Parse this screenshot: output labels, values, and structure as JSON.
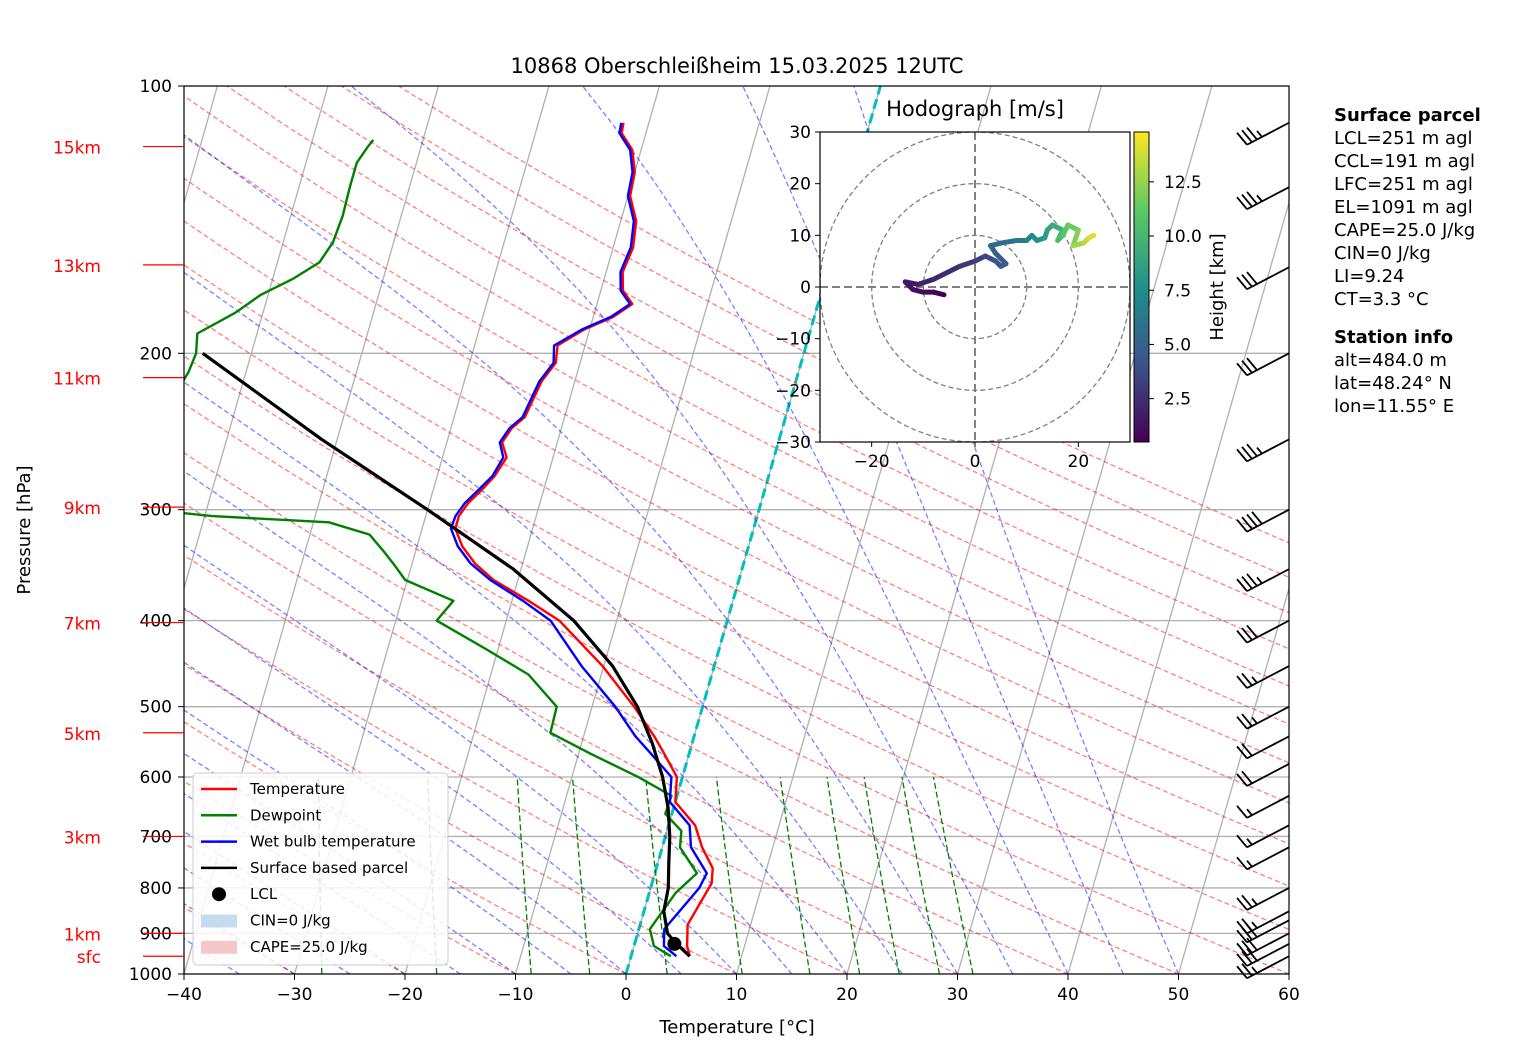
{
  "chart_data": {
    "type": "line",
    "title": "10868 Oberschleißheim 15.03.2025 12UTC",
    "xlabel": "Temperature [°C]",
    "ylabel": "Pressure [hPa]",
    "xlim": [
      -40,
      60
    ],
    "ylim": [
      1000,
      100
    ],
    "y_scale": "log",
    "skew": "skew-T log-p diagram",
    "grid": true,
    "x_ticks": [
      "−40",
      "−30",
      "−20",
      "−10",
      "0",
      "10",
      "20",
      "30",
      "40",
      "50",
      "60"
    ],
    "y_ticks": [
      "100",
      "200",
      "300",
      "400",
      "500",
      "600",
      "700",
      "800",
      "900",
      "1000"
    ],
    "height_labels": [
      {
        "label": "sfc",
        "pressure": 955
      },
      {
        "label": "1km",
        "pressure": 900
      },
      {
        "label": "3km",
        "pressure": 700
      },
      {
        "label": "5km",
        "pressure": 535
      },
      {
        "label": "7km",
        "pressure": 402
      },
      {
        "label": "9km",
        "pressure": 298
      },
      {
        "label": "11km",
        "pressure": 213
      },
      {
        "label": "13km",
        "pressure": 159
      },
      {
        "label": "15km",
        "pressure": 117
      }
    ],
    "legend": {
      "placement": "lower-left",
      "entries": [
        {
          "label": "Temperature",
          "color": "#ff0000",
          "kind": "line"
        },
        {
          "label": "Dewpoint",
          "color": "#008000",
          "kind": "line"
        },
        {
          "label": "Wet bulb temperature",
          "color": "#0000ff",
          "kind": "line"
        },
        {
          "label": "Surface based parcel",
          "color": "#000000",
          "kind": "line"
        },
        {
          "label": "LCL",
          "color": "#000000",
          "kind": "dot"
        },
        {
          "label": "CIN=0 J/kg",
          "color": "#c6dbef",
          "kind": "patch"
        },
        {
          "label": "CAPE=25.0 J/kg",
          "color": "#f4c7c9",
          "kind": "patch"
        }
      ]
    },
    "series": [
      {
        "name": "Temperature",
        "color": "#ff0000",
        "points": [
          [
            5.3,
            955
          ],
          [
            4.8,
            930
          ],
          [
            4.3,
            880
          ],
          [
            5.4,
            790
          ],
          [
            5.1,
            760
          ],
          [
            3.6,
            720
          ],
          [
            2.4,
            680
          ],
          [
            0.0,
            640
          ],
          [
            -0.5,
            600
          ],
          [
            -2.5,
            560
          ],
          [
            -3.6,
            540
          ],
          [
            -6.2,
            500
          ],
          [
            -10.1,
            450
          ],
          [
            -15.2,
            400
          ],
          [
            -18.5,
            380
          ],
          [
            -22.2,
            360
          ],
          [
            -24.3,
            345
          ],
          [
            -25.9,
            330
          ],
          [
            -27.0,
            315
          ],
          [
            -27.0,
            305
          ],
          [
            -26.5,
            295
          ],
          [
            -25.6,
            285
          ],
          [
            -24.8,
            275
          ],
          [
            -24.2,
            262
          ],
          [
            -25.0,
            252
          ],
          [
            -24.5,
            243
          ],
          [
            -23.6,
            236
          ],
          [
            -23.3,
            225
          ],
          [
            -23.0,
            215
          ],
          [
            -22.2,
            205
          ],
          [
            -22.5,
            196
          ],
          [
            -20.5,
            188
          ],
          [
            -18.2,
            182
          ],
          [
            -16.8,
            176
          ],
          [
            -18.0,
            170
          ],
          [
            -18.5,
            162
          ],
          [
            -18.2,
            152
          ],
          [
            -18.6,
            142
          ],
          [
            -19.8,
            133
          ],
          [
            -20.0,
            125
          ],
          [
            -20.8,
            118
          ],
          [
            -22.2,
            113
          ],
          [
            -22.3,
            110
          ]
        ]
      },
      {
        "name": "Dewpoint",
        "color": "#008000",
        "points": [
          [
            3.6,
            955
          ],
          [
            1.8,
            930
          ],
          [
            1.0,
            890
          ],
          [
            2.4,
            810
          ],
          [
            3.8,
            770
          ],
          [
            1.6,
            720
          ],
          [
            1.3,
            690
          ],
          [
            -0.6,
            660
          ],
          [
            -0.5,
            630
          ],
          [
            -4.0,
            600
          ],
          [
            -8.9,
            565
          ],
          [
            -13.1,
            535
          ],
          [
            -13.2,
            500
          ],
          [
            -16.6,
            460
          ],
          [
            -21.2,
            430
          ],
          [
            -26.3,
            400
          ],
          [
            -25.3,
            380
          ],
          [
            -30.2,
            360
          ],
          [
            -31.7,
            345
          ],
          [
            -32.8,
            335
          ],
          [
            -34.6,
            320
          ],
          [
            -38.6,
            310
          ],
          [
            -49.3,
            305
          ],
          [
            -57.6,
            298
          ],
          [
            -59.9,
            290
          ],
          [
            -60.6,
            280
          ],
          [
            -60.0,
            270
          ],
          [
            -59.6,
            260
          ],
          [
            -58.4,
            250
          ],
          [
            -56.9,
            240
          ],
          [
            -55.2,
            230
          ],
          [
            -55.7,
            220
          ],
          [
            -55.2,
            210
          ],
          [
            -55.0,
            200
          ],
          [
            -55.4,
            190
          ],
          [
            -52.5,
            180
          ],
          [
            -50.7,
            172
          ],
          [
            -48.2,
            165
          ],
          [
            -46.2,
            158
          ],
          [
            -45.5,
            150
          ],
          [
            -45.3,
            140
          ],
          [
            -45.4,
            130
          ],
          [
            -45.4,
            122
          ],
          [
            -44.8,
            117
          ],
          [
            -44.5,
            115
          ]
        ]
      },
      {
        "name": "Wet bulb temperature",
        "color": "#0000ff",
        "points": [
          [
            4.1,
            955
          ],
          [
            2.7,
            930
          ],
          [
            2.3,
            890
          ],
          [
            4.4,
            800
          ],
          [
            4.7,
            770
          ],
          [
            2.6,
            720
          ],
          [
            1.9,
            680
          ],
          [
            -0.5,
            640
          ],
          [
            -1.0,
            600
          ],
          [
            -3.8,
            560
          ],
          [
            -5.3,
            540
          ],
          [
            -7.9,
            500
          ],
          [
            -12.0,
            450
          ],
          [
            -16.0,
            400
          ],
          [
            -19.0,
            380
          ],
          [
            -22.5,
            360
          ],
          [
            -24.7,
            345
          ],
          [
            -26.3,
            330
          ],
          [
            -27.4,
            315
          ],
          [
            -27.3,
            305
          ],
          [
            -26.8,
            295
          ],
          [
            -25.9,
            285
          ],
          [
            -25.0,
            275
          ],
          [
            -24.5,
            262
          ],
          [
            -25.2,
            252
          ],
          [
            -24.7,
            243
          ],
          [
            -23.8,
            236
          ],
          [
            -23.5,
            225
          ],
          [
            -23.2,
            215
          ],
          [
            -22.4,
            205
          ],
          [
            -22.8,
            196
          ],
          [
            -20.7,
            188
          ],
          [
            -18.4,
            182
          ],
          [
            -17.0,
            176
          ],
          [
            -18.2,
            170
          ],
          [
            -18.7,
            162
          ],
          [
            -18.4,
            152
          ],
          [
            -18.8,
            142
          ],
          [
            -20.0,
            133
          ],
          [
            -20.2,
            125
          ],
          [
            -21.0,
            118
          ],
          [
            -22.4,
            113
          ],
          [
            -22.5,
            110
          ]
        ]
      },
      {
        "name": "Surface based parcel",
        "color": "#000000",
        "points": [
          [
            5.3,
            955
          ],
          [
            3.8,
            925
          ],
          [
            2.7,
            900
          ],
          [
            1.8,
            850
          ],
          [
            1.6,
            800
          ],
          [
            1.0,
            750
          ],
          [
            0.4,
            700
          ],
          [
            -0.5,
            650
          ],
          [
            -1.8,
            600
          ],
          [
            -3.6,
            550
          ],
          [
            -5.9,
            500
          ],
          [
            -9.2,
            450
          ],
          [
            -13.9,
            400
          ],
          [
            -20.7,
            350
          ],
          [
            -30.0,
            300
          ],
          [
            -41.4,
            250
          ],
          [
            -54.4,
            200
          ]
        ]
      }
    ],
    "lcl": {
      "t": 3.6,
      "p": 925
    },
    "cin": "CIN=0 J/kg",
    "cape": "CAPE=25.0 J/kg",
    "wind_barbs": [
      {
        "p": 955,
        "speed_kt": 25
      },
      {
        "p": 925,
        "speed_kt": 30
      },
      {
        "p": 900,
        "speed_kt": 30
      },
      {
        "p": 870,
        "speed_kt": 30
      },
      {
        "p": 850,
        "speed_kt": 25
      },
      {
        "p": 800,
        "speed_kt": 25
      },
      {
        "p": 720,
        "speed_kt": 15
      },
      {
        "p": 680,
        "speed_kt": 15
      },
      {
        "p": 630,
        "speed_kt": 15
      },
      {
        "p": 580,
        "speed_kt": 20
      },
      {
        "p": 540,
        "speed_kt": 20
      },
      {
        "p": 500,
        "speed_kt": 25
      },
      {
        "p": 450,
        "speed_kt": 25
      },
      {
        "p": 400,
        "speed_kt": 30
      },
      {
        "p": 350,
        "speed_kt": 35
      },
      {
        "p": 300,
        "speed_kt": 40
      },
      {
        "p": 250,
        "speed_kt": 35
      },
      {
        "p": 200,
        "speed_kt": 30
      },
      {
        "p": 160,
        "speed_kt": 30
      },
      {
        "p": 130,
        "speed_kt": 35
      },
      {
        "p": 110,
        "speed_kt": 35
      }
    ],
    "hodograph": {
      "title": "Hodograph [m/s]",
      "xlim": [
        -30,
        30
      ],
      "ylim": [
        -30,
        30
      ],
      "ticks": [
        "−30",
        "−20",
        "−10",
        "0",
        "10",
        "20",
        "30"
      ],
      "xticks": [
        "−20",
        "0",
        "20"
      ],
      "rings": [
        10,
        20,
        30
      ],
      "colorbar_label": "Height [km]",
      "colorbar_ticks": [
        "2.5",
        "5.0",
        "7.5",
        "10.0",
        "12.5"
      ],
      "colorbar_range": [
        0.5,
        14.8
      ],
      "points": [
        [
          -6,
          -1.5,
          0.5
        ],
        [
          -8,
          -1,
          0.8
        ],
        [
          -10,
          -1,
          1.1
        ],
        [
          -12,
          -0.5,
          1.4
        ],
        [
          -13.5,
          1,
          1.6
        ],
        [
          -11,
          0.5,
          1.9
        ],
        [
          -8,
          1.5,
          2.2
        ],
        [
          -6,
          2.5,
          2.5
        ],
        [
          -3,
          4,
          2.9
        ],
        [
          0,
          5,
          3.3
        ],
        [
          2,
          6,
          3.7
        ],
        [
          4,
          5,
          4.1
        ],
        [
          5,
          4,
          4.4
        ],
        [
          6,
          4.5,
          4.7
        ],
        [
          4,
          6.5,
          5.0
        ],
        [
          3,
          8,
          5.4
        ],
        [
          5,
          8.5,
          5.8
        ],
        [
          8,
          9,
          6.3
        ],
        [
          10,
          9,
          6.8
        ],
        [
          11,
          10,
          7.3
        ],
        [
          12,
          9,
          7.8
        ],
        [
          13.5,
          9.5,
          8.3
        ],
        [
          14,
          11,
          8.8
        ],
        [
          15,
          12,
          9.3
        ],
        [
          17,
          11,
          9.9
        ],
        [
          16,
          9,
          10.4
        ],
        [
          17,
          10,
          11.0
        ],
        [
          18,
          12,
          11.5
        ],
        [
          20,
          11,
          12.1
        ],
        [
          19,
          8,
          12.7
        ],
        [
          21,
          8.5,
          13.3
        ],
        [
          22,
          9.5,
          14.0
        ],
        [
          23,
          10,
          14.6
        ]
      ]
    }
  },
  "info": {
    "surface_title": "Surface parcel",
    "surface_lines": [
      "LCL=251 m agl",
      "CCL=191 m agl",
      "LFC=251 m agl",
      "EL=1091 m agl",
      "CAPE=25.0 J/kg",
      "CIN=0 J/kg",
      "LI=9.24",
      "CT=3.3 °C"
    ],
    "station_title": "Station info",
    "station_lines": [
      "alt=484.0 m",
      "lat=48.24° N",
      "lon=11.55° E"
    ]
  }
}
